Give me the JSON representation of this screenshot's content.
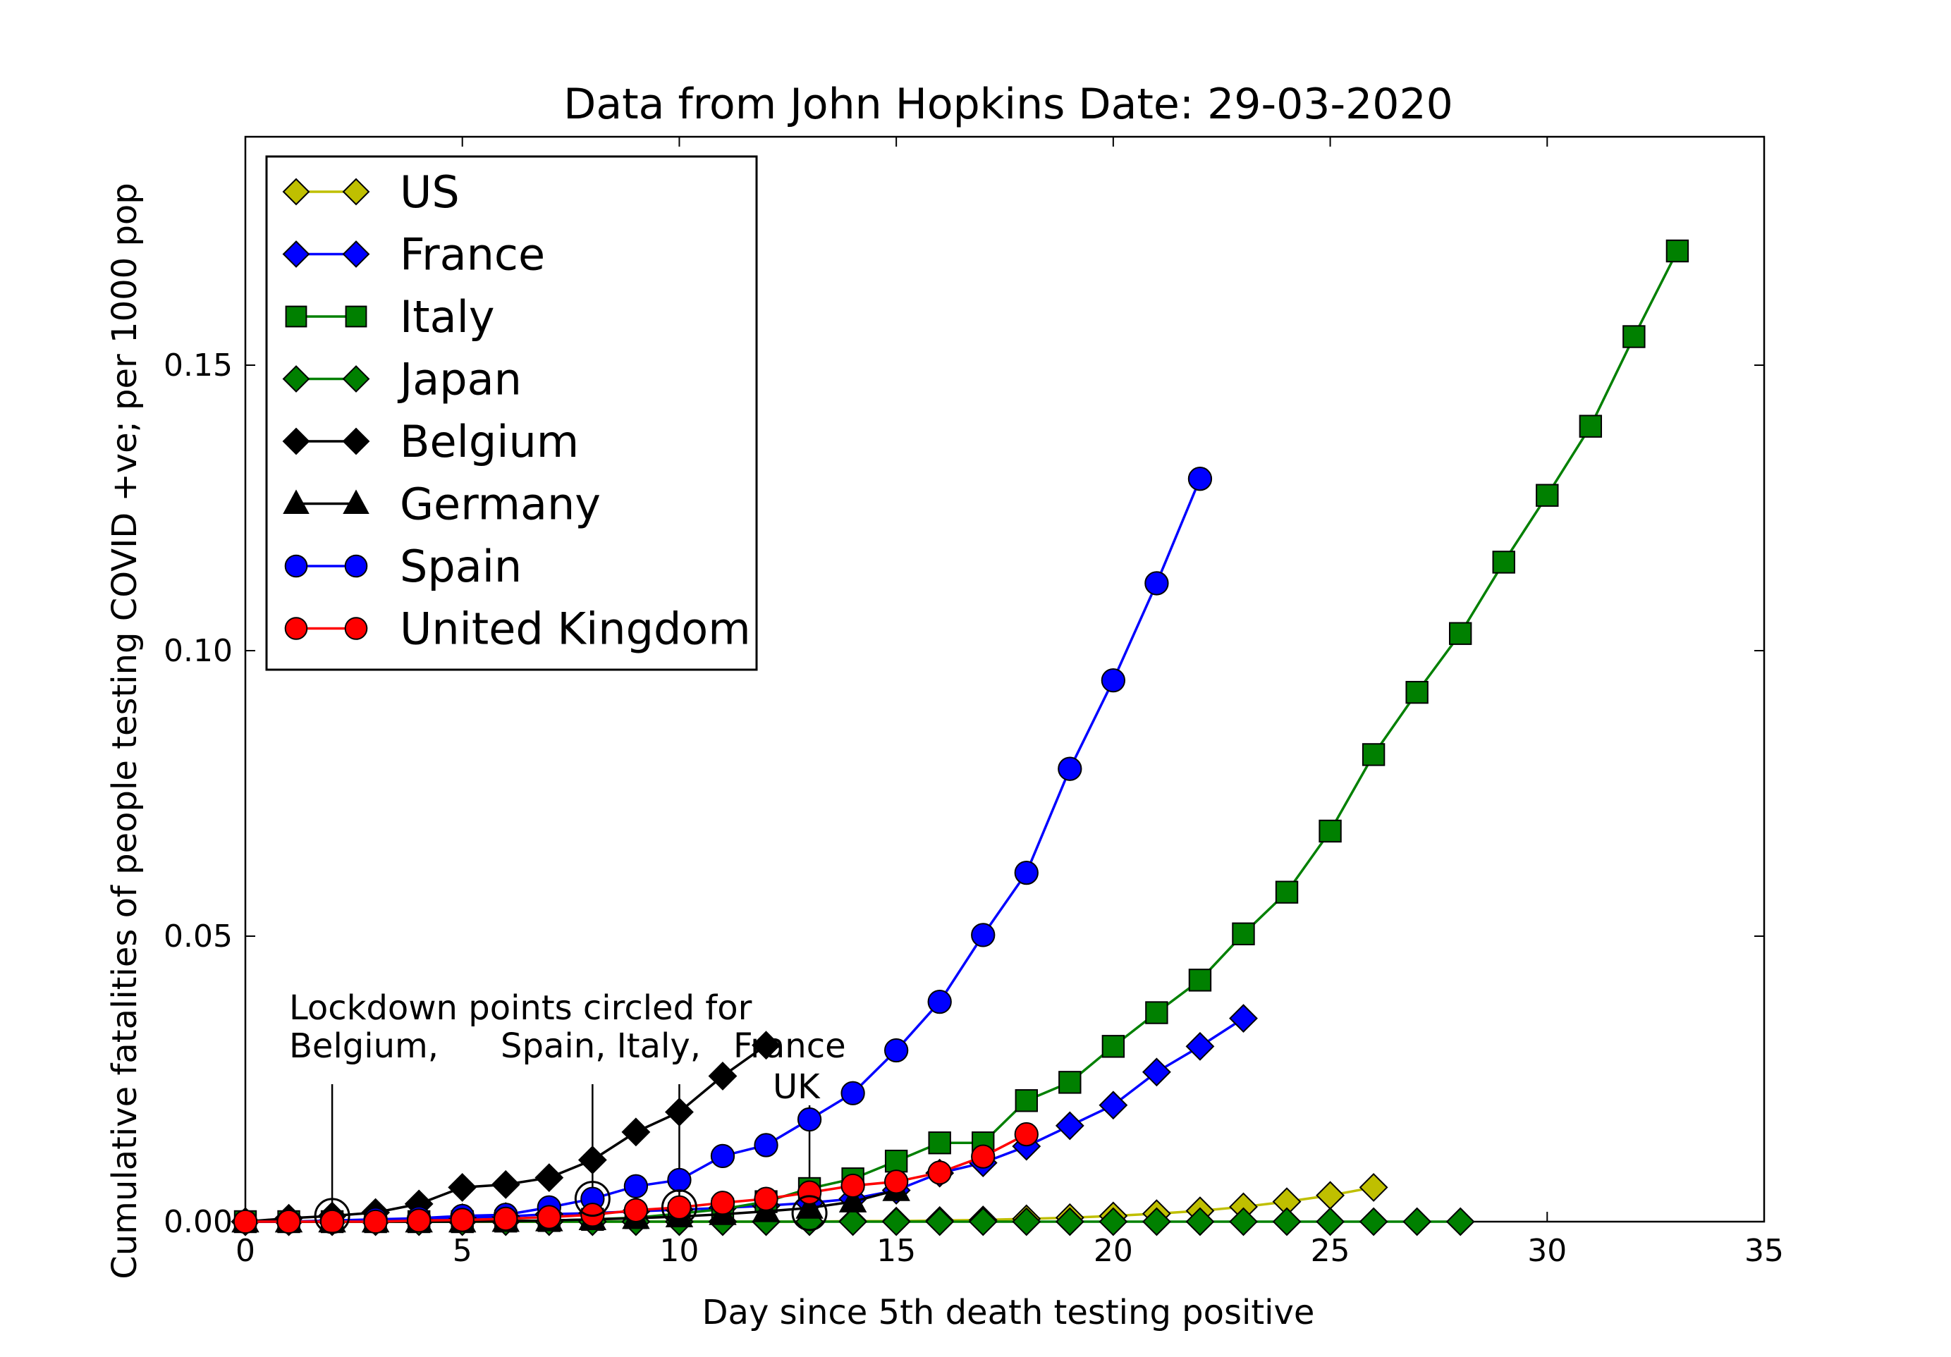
{
  "chart_data": {
    "type": "line",
    "title": "Data from John Hopkins Date: 29-03-2020",
    "xlabel": "Day since 5th death testing positive",
    "ylabel": "Cumulative fatalities of people testing COVID +ve; per 1000 pop",
    "xlim": [
      0,
      35
    ],
    "ylim": [
      0,
      0.19
    ],
    "xticks": [
      "0",
      "5",
      "10",
      "15",
      "20",
      "25",
      "30",
      "35"
    ],
    "yticks": [
      "0.00",
      "0.05",
      "0.10",
      "0.15"
    ],
    "grid": false,
    "legend_position": "upper-left",
    "series": [
      {
        "name": "US",
        "color": "#bfbf00",
        "marker": "diamond",
        "x": [
          0,
          1,
          2,
          3,
          4,
          5,
          6,
          7,
          8,
          9,
          10,
          11,
          12,
          13,
          14,
          15,
          16,
          17,
          18,
          19,
          20,
          21,
          22,
          23,
          24,
          25,
          26
        ],
        "y": [
          0,
          0,
          0,
          0,
          0,
          0,
          0,
          0,
          0,
          0,
          0,
          0,
          0,
          0,
          0.0001,
          0.0001,
          0.0002,
          0.0003,
          0.0005,
          0.0007,
          0.001,
          0.0014,
          0.0019,
          0.0026,
          0.0035,
          0.0046,
          0.006
        ]
      },
      {
        "name": "France",
        "color": "#0000ff",
        "marker": "diamond",
        "x": [
          0,
          1,
          2,
          3,
          4,
          5,
          6,
          7,
          8,
          9,
          10,
          11,
          12,
          13,
          14,
          15,
          16,
          17,
          18,
          19,
          20,
          21,
          22,
          23
        ],
        "y": [
          0,
          0,
          0.0001,
          0.0002,
          0.0004,
          0.0007,
          0.0009,
          0.0013,
          0.0015,
          0.0018,
          0.0021,
          0.0024,
          0.0028,
          0.0033,
          0.004,
          0.0055,
          0.0085,
          0.0103,
          0.0132,
          0.0168,
          0.0204,
          0.0262,
          0.0307,
          0.0356
        ]
      },
      {
        "name": "Italy",
        "color": "#008000",
        "marker": "square",
        "x": [
          0,
          1,
          2,
          3,
          4,
          5,
          6,
          7,
          8,
          9,
          10,
          11,
          12,
          13,
          14,
          15,
          16,
          17,
          18,
          19,
          20,
          21,
          22,
          23,
          24,
          25,
          26,
          27,
          28,
          29,
          30,
          31,
          32,
          33
        ],
        "y": [
          0,
          0,
          0,
          0,
          0,
          0,
          0.0001,
          0.0002,
          0.0004,
          0.0007,
          0.0014,
          0.0022,
          0.0035,
          0.0058,
          0.0075,
          0.0106,
          0.0138,
          0.0138,
          0.0212,
          0.0244,
          0.0307,
          0.0366,
          0.0423,
          0.0504,
          0.0577,
          0.0684,
          0.0818,
          0.0927,
          0.103,
          0.1155,
          0.1272,
          0.1393,
          0.155,
          0.17
        ]
      },
      {
        "name": "Japan",
        "color": "#008000",
        "marker": "diamond",
        "x": [
          0,
          1,
          2,
          3,
          4,
          5,
          6,
          7,
          8,
          9,
          10,
          11,
          12,
          13,
          14,
          15,
          16,
          17,
          18,
          19,
          20,
          21,
          22,
          23,
          24,
          25,
          26,
          27,
          28
        ],
        "y": [
          0,
          0,
          0,
          0,
          0,
          0,
          0,
          0,
          0,
          0,
          0,
          0,
          0,
          0,
          0,
          0,
          0,
          0,
          0,
          0,
          0,
          0,
          0,
          0,
          0,
          0,
          0,
          0,
          0
        ]
      },
      {
        "name": "Belgium",
        "color": "#000000",
        "marker": "diamond",
        "x": [
          0,
          1,
          2,
          3,
          4,
          5,
          6,
          7,
          8,
          9,
          10,
          11,
          12
        ],
        "y": [
          0,
          0.0006,
          0.001,
          0.0016,
          0.0031,
          0.006,
          0.0065,
          0.0077,
          0.0108,
          0.0157,
          0.0192,
          0.0255,
          0.0309
        ]
      },
      {
        "name": "Germany",
        "color": "#000000",
        "marker": "triangle",
        "x": [
          0,
          1,
          2,
          3,
          4,
          5,
          6,
          7,
          8,
          9,
          10,
          11,
          12,
          13,
          14,
          15
        ],
        "y": [
          0,
          0,
          0,
          0,
          0,
          0,
          0.0001,
          0.0002,
          0.0004,
          0.0006,
          0.0009,
          0.0013,
          0.0018,
          0.0024,
          0.0035,
          0.0055
        ]
      },
      {
        "name": "Spain",
        "color": "#0000ff",
        "marker": "circle",
        "x": [
          0,
          1,
          2,
          3,
          4,
          5,
          6,
          7,
          8,
          9,
          10,
          11,
          12,
          13,
          14,
          15,
          16,
          17,
          18,
          19,
          20,
          21,
          22
        ],
        "y": [
          0,
          0,
          0.0002,
          0.0004,
          0.0006,
          0.001,
          0.0012,
          0.0025,
          0.004,
          0.0062,
          0.0073,
          0.0115,
          0.0134,
          0.0179,
          0.0225,
          0.03,
          0.0385,
          0.0502,
          0.0611,
          0.0793,
          0.0948,
          0.1118,
          0.1301
        ]
      },
      {
        "name": "United Kingdom",
        "color": "#ff0000",
        "marker": "circle",
        "x": [
          0,
          1,
          2,
          3,
          4,
          5,
          6,
          7,
          8,
          9,
          10,
          11,
          12,
          13,
          14,
          15,
          16,
          17,
          18
        ],
        "y": [
          0,
          0,
          0,
          0,
          0.0002,
          0.0003,
          0.0005,
          0.0008,
          0.0012,
          0.002,
          0.0025,
          0.0033,
          0.004,
          0.0051,
          0.0063,
          0.007,
          0.0086,
          0.0114,
          0.0153
        ]
      }
    ],
    "lockdown_points": [
      {
        "x": 2,
        "y": 0.001
      },
      {
        "x": 8,
        "y": 0.004
      },
      {
        "x": 10,
        "y": 0.0025
      },
      {
        "x": 13,
        "y": 0.0015
      }
    ],
    "annotations": {
      "line1": "Lockdown points circled for",
      "belgium": "Belgium,",
      "spain_italy": "Spain, Italy,",
      "france": "France",
      "uk": "UK"
    },
    "annotation_arrows_x": [
      2,
      8,
      10,
      13
    ]
  }
}
